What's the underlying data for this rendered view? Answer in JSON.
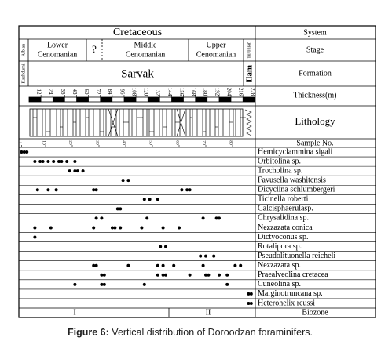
{
  "system": "Cretaceous",
  "rows": {
    "system": "System",
    "stage": "Stage",
    "formation": "Formation",
    "thickness": "Thickness(m)",
    "lithology": "Lithology",
    "sample": "Sample No.",
    "biozone": "Biozone"
  },
  "stages": {
    "albian": "Albian",
    "lower": [
      "Lower",
      "Cenomanian"
    ],
    "uncertain": "?",
    "middle": [
      "Middle",
      "Cenomanian"
    ],
    "upper": [
      "Upper",
      "Cenomanian"
    ],
    "turonian": "Turonian"
  },
  "formations": {
    "kazhdumi": "Kazhdumi",
    "sarvak": "Sarvak",
    "ilam": "Ilam"
  },
  "thickness_ticks": [
    12,
    24,
    36,
    48,
    60,
    72,
    84,
    96,
    108,
    120,
    132,
    144,
    156,
    168,
    180,
    192,
    204,
    216,
    228
  ],
  "sample_ticks": [
    1,
    10,
    20,
    30,
    40,
    50,
    60,
    70,
    80
  ],
  "species": [
    {
      "name": "Hemicyclammina sigali",
      "samples": [
        1,
        2,
        3
      ]
    },
    {
      "name": "Orbitolina sp.",
      "samples": [
        6,
        8,
        9,
        11,
        13,
        15,
        16,
        18,
        21
      ]
    },
    {
      "name": "Trocholina sp.",
      "samples": [
        19,
        21,
        22,
        24
      ]
    },
    {
      "name": "Favusella washitensis",
      "samples": [
        39,
        41
      ]
    },
    {
      "name": "Dicyclina schlumbergeri",
      "samples": [
        7,
        11,
        14,
        28,
        29,
        61,
        63,
        64
      ]
    },
    {
      "name": "Ticinella roberti",
      "samples": [
        47,
        49,
        52
      ]
    },
    {
      "name": "Calcisphaerulasp.",
      "samples": [
        37,
        38
      ]
    },
    {
      "name": "Chrysalidina sp.",
      "samples": [
        29,
        31,
        48,
        69,
        74,
        75
      ]
    },
    {
      "name": "Nezzazata conica",
      "samples": [
        6,
        12,
        28,
        35,
        36,
        38,
        46,
        54,
        60
      ]
    },
    {
      "name": "Dictyoconus sp.",
      "samples": [
        6
      ]
    },
    {
      "name": "Rotalipora sp.",
      "samples": [
        53,
        55
      ]
    },
    {
      "name": "Pseudolituonella reicheli",
      "samples": [
        68,
        70,
        73
      ]
    },
    {
      "name": "Nezzazata sp.",
      "samples": [
        28,
        29,
        41,
        52,
        54,
        58,
        69,
        81,
        83
      ]
    },
    {
      "name": "Praealveolina cretacea",
      "samples": [
        31,
        32,
        52,
        54,
        55,
        64,
        70,
        71,
        75,
        78
      ]
    },
    {
      "name": "Cuneolina sp.",
      "samples": [
        21,
        31,
        32,
        47,
        78
      ]
    },
    {
      "name": "Marginotruncana sp.",
      "samples": [
        86,
        87
      ]
    },
    {
      "name": "Heterohelix reussi",
      "samples": [
        86,
        87
      ]
    }
  ],
  "biozones": [
    "I",
    "II"
  ],
  "caption": {
    "label": "Figure 6:",
    "text": "Vertical distribution of Doroodzan foraminifers."
  }
}
